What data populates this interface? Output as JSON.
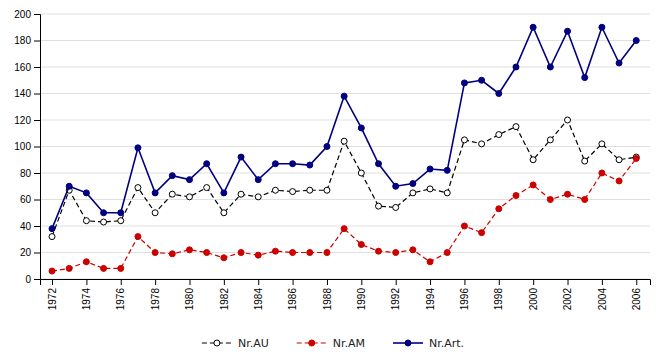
{
  "chart_data": {
    "type": "line",
    "x": [
      1972,
      1973,
      1974,
      1975,
      1976,
      1977,
      1978,
      1979,
      1980,
      1981,
      1982,
      1983,
      1984,
      1985,
      1986,
      1987,
      1988,
      1989,
      1990,
      1991,
      1992,
      1993,
      1994,
      1995,
      1996,
      1997,
      1998,
      1999,
      2000,
      2001,
      2002,
      2003,
      2004,
      2005,
      2006
    ],
    "series": [
      {
        "name": "Nr.AU",
        "color": "#000000",
        "marker": "circle-open",
        "line_style": "dashed",
        "values": [
          32,
          67,
          44,
          43,
          44,
          69,
          50,
          64,
          62,
          69,
          50,
          64,
          62,
          67,
          66,
          67,
          67,
          104,
          80,
          55,
          54,
          65,
          68,
          65,
          105,
          102,
          109,
          115,
          90,
          105,
          120,
          89,
          102,
          90,
          92
        ]
      },
      {
        "name": "Nr.AM",
        "color": "#CC0000",
        "marker": "circle",
        "line_style": "dashed",
        "values": [
          6,
          8,
          13,
          8,
          8,
          32,
          20,
          19,
          22,
          20,
          16,
          20,
          18,
          21,
          20,
          20,
          20,
          38,
          26,
          21,
          20,
          22,
          13,
          20,
          40,
          35,
          53,
          63,
          71,
          60,
          64,
          60,
          80,
          74,
          91
        ]
      },
      {
        "name": "Nr.Art.",
        "color": "#000080",
        "marker": "circle",
        "line_style": "solid",
        "values": [
          38,
          70,
          65,
          50,
          50,
          99,
          65,
          78,
          75,
          87,
          65,
          92,
          75,
          87,
          87,
          86,
          100,
          138,
          114,
          87,
          70,
          72,
          83,
          82,
          148,
          150,
          140,
          160,
          190,
          160,
          187,
          152,
          190,
          163,
          180
        ]
      }
    ],
    "xlim": [
      1971.3,
      2006.8
    ],
    "xticks": [
      1972,
      1974,
      1976,
      1978,
      1980,
      1982,
      1984,
      1986,
      1988,
      1990,
      1992,
      1994,
      1996,
      1998,
      2000,
      2002,
      2004,
      2006
    ],
    "ylim": [
      0,
      200
    ],
    "yticks": [
      0,
      20,
      40,
      60,
      80,
      100,
      120,
      140,
      160,
      180,
      200
    ],
    "grid": true,
    "legend": "bottom"
  }
}
